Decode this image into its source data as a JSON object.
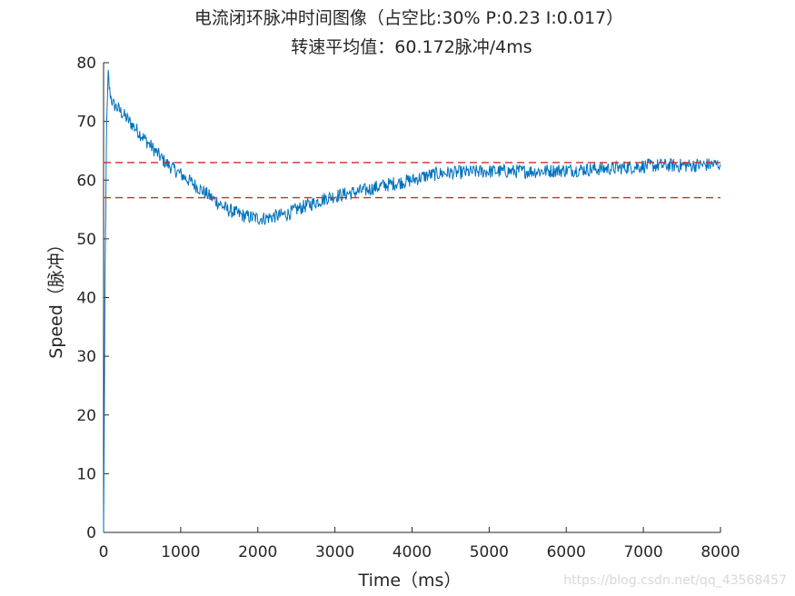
{
  "chart_data": {
    "type": "line",
    "title": "电流闭环脉冲时间图像（占空比:30%  P:0.23  I:0.017）",
    "subtitle": "转速平均值：60.172脉冲/4ms",
    "xlabel": "Time（ms）",
    "ylabel": "Speed（脉冲）",
    "xlim": [
      0,
      8000
    ],
    "ylim": [
      0,
      80
    ],
    "xticks": [
      0,
      1000,
      2000,
      3000,
      4000,
      5000,
      6000,
      7000,
      8000
    ],
    "yticks": [
      0,
      10,
      20,
      30,
      40,
      50,
      60,
      70,
      80
    ],
    "grid": false,
    "series": [
      {
        "color": "#0072bd",
        "noise_amplitude": 1.2,
        "x": [
          0,
          20,
          40,
          60,
          80,
          120,
          200,
          300,
          400,
          500,
          600,
          700,
          800,
          900,
          1000,
          1100,
          1200,
          1300,
          1400,
          1500,
          1600,
          1700,
          1800,
          1900,
          2000,
          2100,
          2200,
          2300,
          2400,
          2500,
          2600,
          2700,
          2800,
          2900,
          3000,
          3200,
          3400,
          3600,
          3800,
          4000,
          4200,
          4400,
          4600,
          4800,
          5000,
          5200,
          5400,
          5600,
          5800,
          6000,
          6200,
          6400,
          6600,
          6800,
          7000,
          7200,
          7400,
          7600,
          7800,
          8000
        ],
        "y": [
          0,
          45,
          70,
          78,
          75,
          73,
          72,
          70.5,
          69,
          67.5,
          66,
          64.5,
          63,
          62,
          61,
          60,
          59,
          58,
          57,
          56,
          55,
          54.5,
          54,
          53.7,
          53.5,
          53.5,
          53.8,
          54,
          54.3,
          55,
          55.5,
          56,
          56.5,
          57,
          57.3,
          57.8,
          58.3,
          59,
          59.5,
          60,
          60.8,
          61.2,
          61.3,
          61.4,
          61.5,
          61.5,
          61.5,
          61.5,
          61.6,
          61.7,
          61.8,
          61.9,
          62,
          62.2,
          62.4,
          62.5,
          62.5,
          62.5,
          62.6,
          62.7
        ]
      },
      {
        "color": "#d62728",
        "dashed": true,
        "x": [
          0,
          8000
        ],
        "y": [
          63,
          63
        ]
      },
      {
        "color": "#d62728",
        "dashed": true,
        "x": [
          0,
          8000
        ],
        "y": [
          57,
          57
        ]
      }
    ]
  },
  "watermark": "https://blog.csdn.net/qq_43568457"
}
